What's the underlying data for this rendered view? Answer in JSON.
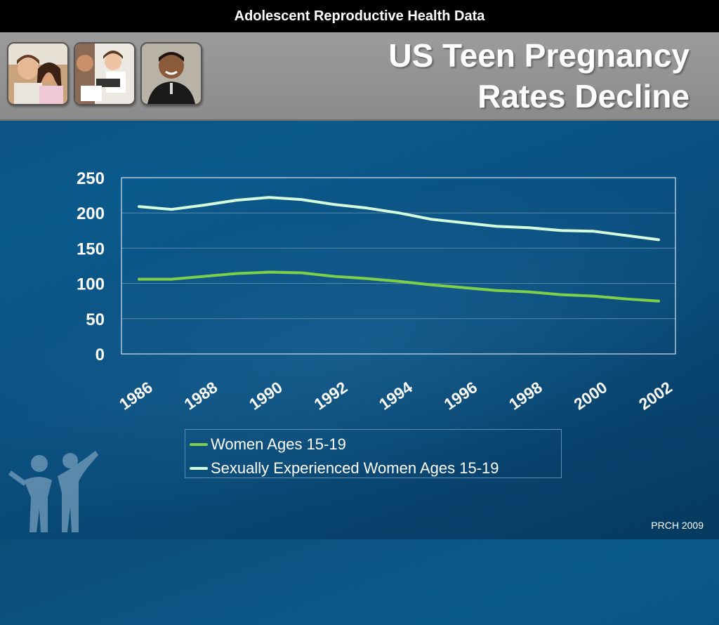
{
  "slide": {
    "header_text": "Adolescent Reproductive Health Data",
    "title_line1": "US Teen Pregnancy",
    "title_line2": "Rates Decline",
    "footer": "PRCH 2009"
  },
  "photos": [
    {
      "name": "photo-teen-couple",
      "icon": "teen-couple-photo"
    },
    {
      "name": "photo-clinic-scale",
      "icon": "clinic-scale-photo"
    },
    {
      "name": "photo-young-man",
      "icon": "young-man-photo"
    }
  ],
  "colors": {
    "series1": "#7dcf4a",
    "series2": "#d4fbdc",
    "axis_text": "#ffffff",
    "plot_border": "#ffffff",
    "grid": "#5a88a8"
  },
  "chart_data": {
    "type": "line",
    "title": "",
    "xlabel": "",
    "ylabel": "",
    "x": [
      1986,
      1987,
      1988,
      1989,
      1990,
      1991,
      1992,
      1993,
      1994,
      1995,
      1996,
      1997,
      1998,
      1999,
      2000,
      2001,
      2002
    ],
    "x_tick_labels": [
      "1986",
      "1988",
      "1990",
      "1992",
      "1994",
      "1996",
      "1998",
      "2000",
      "2002"
    ],
    "ylim": [
      0,
      250
    ],
    "y_ticks": [
      0,
      50,
      100,
      150,
      200,
      250
    ],
    "grid": true,
    "legend_position": "bottom",
    "series": [
      {
        "name": "Women Ages 15-19",
        "values": [
          106,
          106,
          110,
          114,
          116,
          115,
          110,
          107,
          103,
          98,
          94,
          90,
          88,
          84,
          82,
          78,
          75
        ]
      },
      {
        "name": "Sexually Experienced Women Ages 15-19",
        "values": [
          209,
          205,
          211,
          218,
          222,
          219,
          212,
          207,
          200,
          191,
          186,
          181,
          179,
          175,
          174,
          168,
          162
        ]
      }
    ]
  }
}
